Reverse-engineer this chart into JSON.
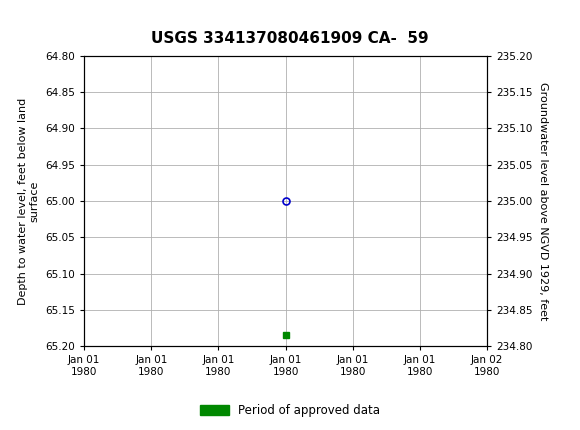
{
  "title": "USGS 334137080461909 CA-  59",
  "header_bg_color": "#1a6e3c",
  "plot_bg_color": "#ffffff",
  "grid_color": "#b0b0b0",
  "left_ylabel": "Depth to water level, feet below land\nsurface",
  "right_ylabel": "Groundwater level above NGVD 1929, feet",
  "ylim_left_top": 64.8,
  "ylim_left_bottom": 65.2,
  "ylim_right_top": 235.2,
  "ylim_right_bottom": 234.8,
  "yticks_left": [
    64.8,
    64.85,
    64.9,
    64.95,
    65.0,
    65.05,
    65.1,
    65.15,
    65.2
  ],
  "yticks_right": [
    235.2,
    235.15,
    235.1,
    235.05,
    235.0,
    234.95,
    234.9,
    234.85,
    234.8
  ],
  "xlim": [
    0,
    6
  ],
  "xtick_positions": [
    0,
    1,
    2,
    3,
    4,
    5,
    6
  ],
  "xtick_labels": [
    "Jan 01\n1980",
    "Jan 01\n1980",
    "Jan 01\n1980",
    "Jan 01\n1980",
    "Jan 01\n1980",
    "Jan 01\n1980",
    "Jan 02\n1980"
  ],
  "data_point_x": 3.0,
  "data_point_y": 65.0,
  "data_point_color": "#0000cc",
  "data_point_markersize": 5,
  "green_marker_x": 3.0,
  "green_marker_y": 65.185,
  "green_marker_color": "#008800",
  "green_marker_size": 4,
  "legend_label": "Period of approved data",
  "legend_color": "#008800",
  "title_fontsize": 11,
  "tick_fontsize": 7.5,
  "label_fontsize": 8,
  "usgs_text": "USGS",
  "header_text_color": "#ffffff"
}
